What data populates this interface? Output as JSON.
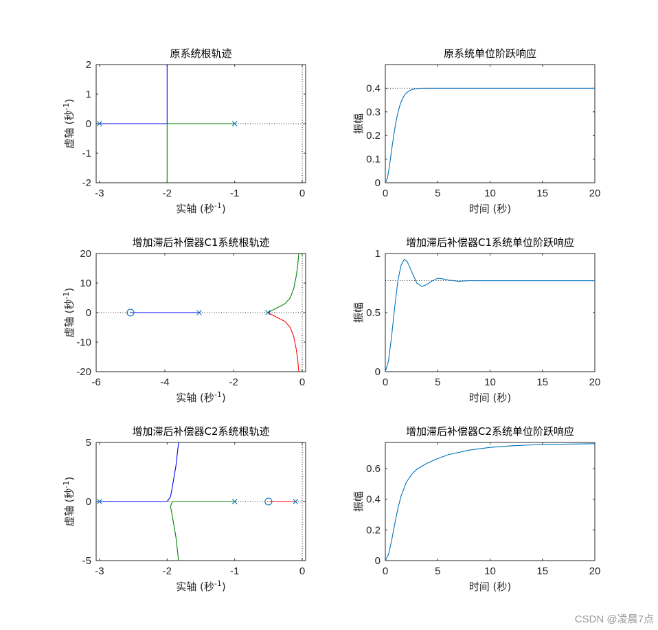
{
  "watermark": "CSDN @凌晨7点",
  "chart_data": [
    {
      "id": "rl-orig",
      "type": "line",
      "kind": "rlocus",
      "title": "原系统根轨迹",
      "xlabel": "实轴 (秒",
      "xlabel_sup": "-1",
      "xlabel_end": ")",
      "ylabel": "虚轴 (秒",
      "ylabel_sup": "-1",
      "ylabel_end": ")",
      "xlim": [
        -3.05,
        0.05
      ],
      "ylim": [
        -2,
        2
      ],
      "xticks": [
        -3,
        -2,
        -1,
        0
      ],
      "yticks": [
        -2,
        -1,
        0,
        1,
        2
      ],
      "series": [
        {
          "color": "#0000ff",
          "points": [
            [
              -3,
              0
            ],
            [
              -2,
              0
            ],
            [
              -2,
              2
            ]
          ]
        },
        {
          "color": "#008000",
          "points": [
            [
              -1,
              0
            ],
            [
              -2,
              0
            ],
            [
              -2,
              -2
            ]
          ]
        }
      ],
      "poles": [
        -3,
        -1
      ],
      "zeros": [],
      "guides": {
        "horizontal": 0,
        "vertical": 0
      }
    },
    {
      "id": "step-orig",
      "type": "line",
      "kind": "step",
      "title": "原系统单位阶跃响应",
      "xlabel": "时间 (秒)",
      "ylabel": "振幅",
      "xlim": [
        0,
        20
      ],
      "ylim": [
        0,
        0.5
      ],
      "xticks": [
        0,
        5,
        10,
        15,
        20
      ],
      "yticks": [
        0,
        0.1,
        0.2,
        0.3,
        0.4
      ],
      "steady_state": 0.4,
      "series": [
        {
          "color": "#0072bd",
          "points": [
            [
              0,
              0
            ],
            [
              0.2,
              0.02
            ],
            [
              0.4,
              0.072
            ],
            [
              0.6,
              0.138
            ],
            [
              0.8,
              0.2
            ],
            [
              1.0,
              0.254
            ],
            [
              1.2,
              0.296
            ],
            [
              1.4,
              0.329
            ],
            [
              1.6,
              0.352
            ],
            [
              1.8,
              0.369
            ],
            [
              2.0,
              0.38
            ],
            [
              2.4,
              0.392
            ],
            [
              2.8,
              0.397
            ],
            [
              3.5,
              0.4
            ],
            [
              5,
              0.4
            ],
            [
              20,
              0.4
            ]
          ]
        }
      ]
    },
    {
      "id": "rl-c1",
      "type": "line",
      "kind": "rlocus",
      "title": "增加滞后补偿器C1系统根轨迹",
      "xlabel": "实轴 (秒",
      "xlabel_sup": "-1",
      "xlabel_end": ")",
      "ylabel": "虚轴 (秒",
      "ylabel_sup": "-1",
      "ylabel_end": ")",
      "xlim": [
        -6,
        0.1
      ],
      "ylim": [
        -20,
        20
      ],
      "xticks": [
        -6,
        -4,
        -2,
        0
      ],
      "yticks": [
        -20,
        -10,
        0,
        10,
        20
      ],
      "series": [
        {
          "color": "#0000ff",
          "points": [
            [
              -3,
              0
            ],
            [
              -5,
              0
            ]
          ]
        },
        {
          "color": "#008000",
          "points": [
            [
              -1,
              0
            ],
            [
              -0.75,
              1.5
            ],
            [
              -0.5,
              3
            ],
            [
              -0.35,
              5
            ],
            [
              -0.25,
              8
            ],
            [
              -0.18,
              12
            ],
            [
              -0.13,
              16
            ],
            [
              -0.1,
              20
            ]
          ]
        },
        {
          "color": "#ff0000",
          "points": [
            [
              -1,
              0
            ],
            [
              -0.75,
              -1.5
            ],
            [
              -0.5,
              -3
            ],
            [
              -0.35,
              -5
            ],
            [
              -0.25,
              -8
            ],
            [
              -0.18,
              -12
            ],
            [
              -0.13,
              -16
            ],
            [
              -0.1,
              -20
            ]
          ]
        }
      ],
      "poles": [
        -3,
        -1
      ],
      "zeros": [
        -5
      ],
      "guides": {
        "horizontal": 0,
        "vertical": 0
      }
    },
    {
      "id": "step-c1",
      "type": "line",
      "kind": "step",
      "title": "增加滞后补偿器C1系统单位阶跃响应",
      "xlabel": "时间 (秒)",
      "ylabel": "振幅",
      "xlim": [
        0,
        20
      ],
      "ylim": [
        0,
        1
      ],
      "xticks": [
        0,
        5,
        10,
        15,
        20
      ],
      "yticks": [
        0,
        0.5,
        1
      ],
      "steady_state": 0.77,
      "series": [
        {
          "color": "#0072bd",
          "points": [
            [
              0,
              0
            ],
            [
              0.3,
              0.09
            ],
            [
              0.6,
              0.3
            ],
            [
              0.9,
              0.55
            ],
            [
              1.2,
              0.77
            ],
            [
              1.5,
              0.9
            ],
            [
              1.8,
              0.95
            ],
            [
              2.1,
              0.93
            ],
            [
              2.5,
              0.85
            ],
            [
              3.0,
              0.75
            ],
            [
              3.5,
              0.72
            ],
            [
              4.0,
              0.74
            ],
            [
              4.5,
              0.77
            ],
            [
              5.0,
              0.79
            ],
            [
              5.5,
              0.785
            ],
            [
              6.0,
              0.775
            ],
            [
              7.0,
              0.765
            ],
            [
              8.0,
              0.77
            ],
            [
              10,
              0.77
            ],
            [
              20,
              0.77
            ]
          ]
        }
      ]
    },
    {
      "id": "rl-c2",
      "type": "line",
      "kind": "rlocus",
      "title": "增加滞后补偿器C2系统根轨迹",
      "xlabel": "实轴 (秒",
      "xlabel_sup": "-1",
      "xlabel_end": ")",
      "ylabel": "虚轴 (秒",
      "ylabel_sup": "-1",
      "ylabel_end": ")",
      "xlim": [
        -3.05,
        0.05
      ],
      "ylim": [
        -5,
        5
      ],
      "xticks": [
        -3,
        -2,
        -1,
        0
      ],
      "yticks": [
        -5,
        0,
        5
      ],
      "series": [
        {
          "color": "#0000ff",
          "points": [
            [
              -3,
              0
            ],
            [
              -2.0,
              0
            ],
            [
              -1.95,
              0.4
            ],
            [
              -1.93,
              1.0
            ],
            [
              -1.9,
              2.0
            ],
            [
              -1.87,
              3.0
            ],
            [
              -1.85,
              4.0
            ],
            [
              -1.83,
              5.0
            ]
          ]
        },
        {
          "color": "#008000",
          "points": [
            [
              -1,
              0
            ],
            [
              -1.92,
              0
            ],
            [
              -1.95,
              -0.4
            ],
            [
              -1.93,
              -1.0
            ],
            [
              -1.9,
              -2.0
            ],
            [
              -1.87,
              -3.0
            ],
            [
              -1.85,
              -4.0
            ],
            [
              -1.83,
              -5.0
            ]
          ]
        },
        {
          "color": "#ff0000",
          "points": [
            [
              -0.1,
              0
            ],
            [
              -0.5,
              0
            ]
          ]
        }
      ],
      "poles": [
        -3,
        -1,
        -0.1
      ],
      "zeros": [
        -0.5
      ],
      "guides": {
        "horizontal": 0,
        "vertical": 0
      }
    },
    {
      "id": "step-c2",
      "type": "line",
      "kind": "step",
      "title": "增加滞后补偿器C2系统单位阶跃响应",
      "xlabel": "时间 (秒)",
      "ylabel": "振幅",
      "xlim": [
        0,
        20
      ],
      "ylim": [
        0,
        0.77
      ],
      "xticks": [
        0,
        5,
        10,
        15,
        20
      ],
      "yticks": [
        0,
        0.2,
        0.4,
        0.6
      ],
      "steady_state": null,
      "series": [
        {
          "color": "#0072bd",
          "points": [
            [
              0,
              0
            ],
            [
              0.3,
              0.04
            ],
            [
              0.6,
              0.13
            ],
            [
              0.9,
              0.24
            ],
            [
              1.2,
              0.34
            ],
            [
              1.5,
              0.42
            ],
            [
              2.0,
              0.51
            ],
            [
              2.5,
              0.56
            ],
            [
              3.0,
              0.595
            ],
            [
              4.0,
              0.635
            ],
            [
              5.0,
              0.665
            ],
            [
              6.0,
              0.69
            ],
            [
              8.0,
              0.72
            ],
            [
              10.0,
              0.738
            ],
            [
              12.0,
              0.748
            ],
            [
              15.0,
              0.757
            ],
            [
              20.0,
              0.762
            ]
          ]
        }
      ]
    }
  ]
}
